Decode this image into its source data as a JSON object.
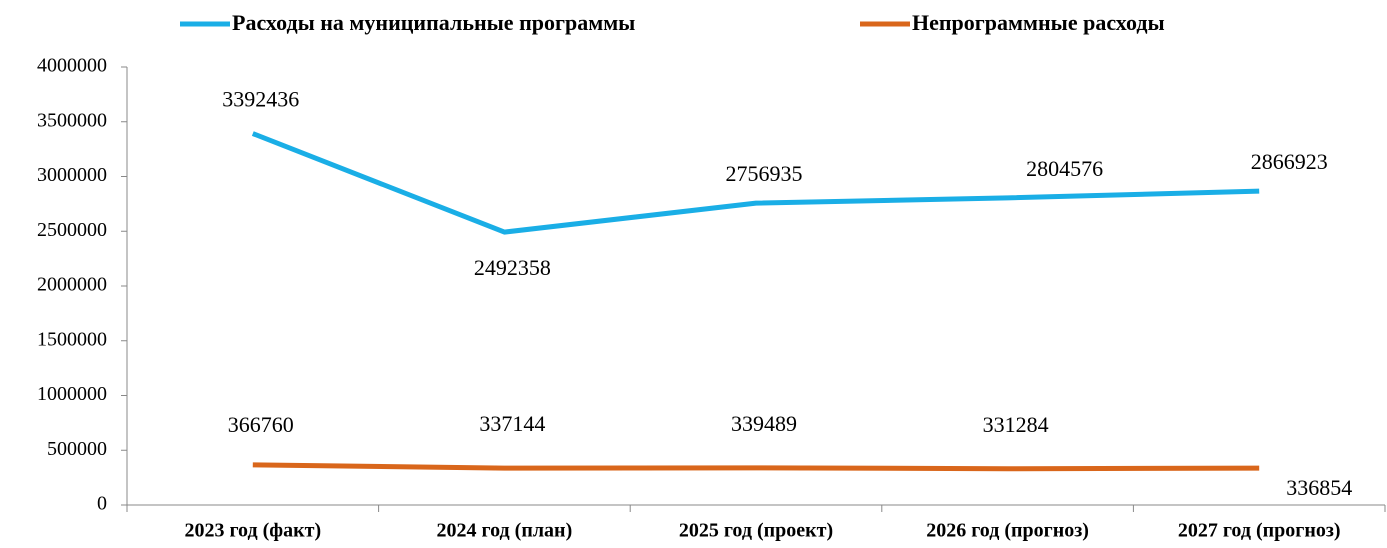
{
  "chart_data": {
    "type": "line",
    "categories": [
      "2023 год (факт)",
      "2024 год (план)",
      "2025 год (проект)",
      "2026 год (прогноз)",
      "2027 год (прогноз)"
    ],
    "series": [
      {
        "name": "Расходы на муниципальные программы",
        "color": "#1aaee6",
        "values": [
          3392436,
          2492358,
          2756935,
          2804576,
          2866923
        ]
      },
      {
        "name": "Непрограммные расходы",
        "color": "#d9661b",
        "values": [
          366760,
          337144,
          339489,
          331284,
          336854
        ]
      }
    ],
    "ylim": [
      0,
      4000000
    ],
    "yticks": [
      0,
      500000,
      1000000,
      1500000,
      2000000,
      2500000,
      3000000,
      3500000,
      4000000
    ],
    "legend": "top",
    "grid": false
  }
}
